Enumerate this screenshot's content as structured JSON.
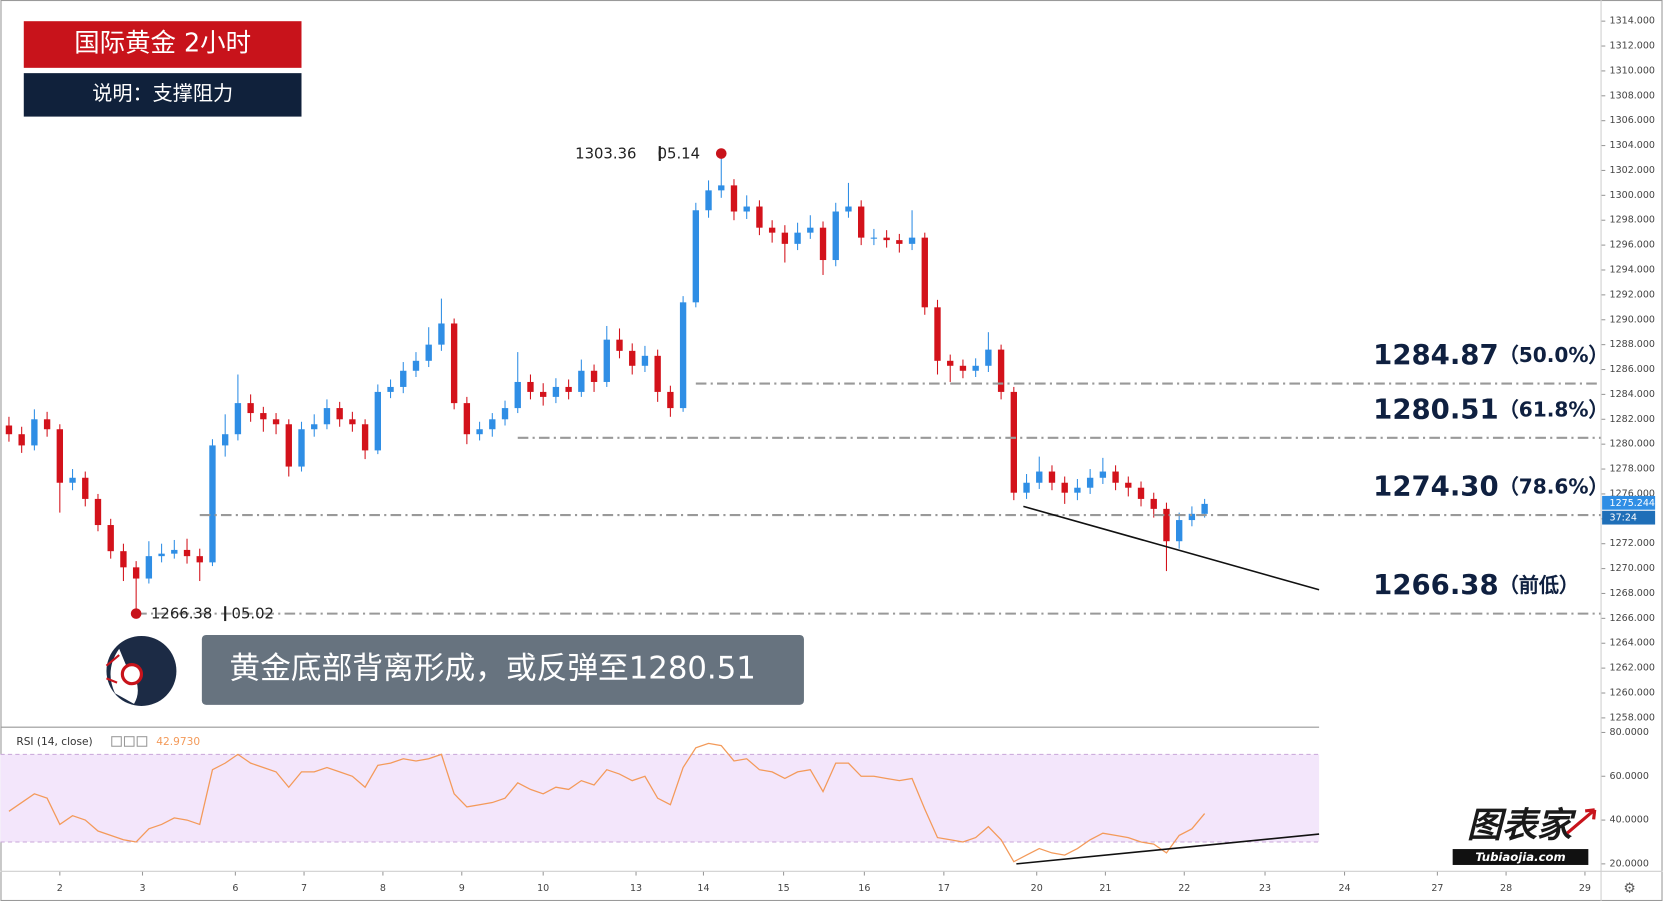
{
  "header": {
    "title": "国际黄金 2小时",
    "subtitle": "说明：支撑阻力",
    "callout": "黄金底部背离形成，或反弹至1280.51",
    "logo": "图表家",
    "logo_url": "Tubiaojia.com"
  },
  "chart_data": [
    {
      "type": "candlestick",
      "xlim": [
        -0.667,
        125.167
      ],
      "ylim": [
        1257.34,
        1315.7
      ],
      "yticks": [
        {
          "value": 1258,
          "label": "1258.000"
        },
        {
          "value": 1260,
          "label": "1260.000"
        },
        {
          "value": 1262,
          "label": "1262.000"
        },
        {
          "value": 1264,
          "label": "1264.000"
        },
        {
          "value": 1266,
          "label": "1266.000"
        },
        {
          "value": 1268,
          "label": "1268.000"
        },
        {
          "value": 1270,
          "label": "1270.000"
        },
        {
          "value": 1272,
          "label": "1272.000"
        },
        {
          "value": 1274,
          "label": "1274.000"
        },
        {
          "value": 1276,
          "label": "1276.000"
        },
        {
          "value": 1278,
          "label": "1278.000"
        },
        {
          "value": 1280,
          "label": "1280.000"
        },
        {
          "value": 1282,
          "label": "1282.000"
        },
        {
          "value": 1284,
          "label": "1284.000"
        },
        {
          "value": 1286,
          "label": "1286.000"
        },
        {
          "value": 1288,
          "label": "1288.000"
        },
        {
          "value": 1290,
          "label": "1290.000"
        },
        {
          "value": 1292,
          "label": "1292.000"
        },
        {
          "value": 1294,
          "label": "1294.000"
        },
        {
          "value": 1296,
          "label": "1296.000"
        },
        {
          "value": 1298,
          "label": "1298.000"
        },
        {
          "value": 1300,
          "label": "1300.000"
        },
        {
          "value": 1302,
          "label": "1302.000"
        },
        {
          "value": 1304,
          "label": "1304.000"
        },
        {
          "value": 1306,
          "label": "1306.000"
        },
        {
          "value": 1308,
          "label": "1308.000"
        },
        {
          "value": 1310,
          "label": "1310.000"
        },
        {
          "value": 1312,
          "label": "1312.000"
        },
        {
          "value": 1314,
          "label": "1314.000"
        }
      ],
      "series": [
        {
          "up_color": "#2f8ee5",
          "down_color": "#d3121b",
          "open": [
            1281.5,
            1280.8,
            1279.9,
            1282,
            1281.2,
            1276.9,
            1277.3,
            1275.6,
            1273.5,
            1271.4,
            1270.1,
            1269.2,
            1271,
            1271.2,
            1271.5,
            1271,
            1270.5,
            1279.9,
            1280.8,
            1283.3,
            1282.5,
            1282,
            1281.6,
            1278.2,
            1281.2,
            1281.6,
            1282.9,
            1282,
            1281.6,
            1279.5,
            1284.2,
            1284.6,
            1285.9,
            1286.7,
            1288,
            1289.7,
            1283.3,
            1280.8,
            1281.2,
            1282,
            1282.9,
            1285,
            1284.2,
            1283.8,
            1284.6,
            1284.2,
            1285.9,
            1285,
            1288.4,
            1287.5,
            1286.3,
            1287.1,
            1284.2,
            1282.9,
            1291.4,
            1298.8,
            1300.4,
            1300.8,
            1298.7,
            1299.1,
            1297.4,
            1297,
            1296.1,
            1297,
            1297.4,
            1294.8,
            1298.7,
            1299.1,
            1296.6,
            1296.6,
            1296.4,
            1296.1,
            1296.6,
            1291,
            1286.7,
            1286.3,
            1285.9,
            1286.3,
            1287.6,
            1284.2,
            1276.1,
            1276.9,
            1277.8,
            1276.9,
            1276.1,
            1276.5,
            1277.3,
            1277.8,
            1276.9,
            1276.5,
            1275.6,
            1274.8,
            1272.2,
            1273.9,
            1274.4
          ],
          "high": [
            1282.2,
            1281.4,
            1282.8,
            1282.6,
            1281.6,
            1278,
            1277.8,
            1276,
            1274,
            1272,
            1270.6,
            1272.2,
            1272,
            1272.3,
            1272.4,
            1271.6,
            1280.4,
            1282.4,
            1285.6,
            1284,
            1283,
            1282.5,
            1282,
            1281.8,
            1282.4,
            1283.6,
            1283.4,
            1282.6,
            1282,
            1284.8,
            1285.2,
            1286.6,
            1287.4,
            1289.4,
            1291.7,
            1290.1,
            1283.8,
            1281.8,
            1282.5,
            1283.5,
            1287.4,
            1285.6,
            1284.9,
            1285.3,
            1285.2,
            1286.8,
            1286.4,
            1289.5,
            1289.3,
            1288.1,
            1287.9,
            1287.6,
            1284.7,
            1291.9,
            1299.4,
            1301.2,
            1303.36,
            1301.3,
            1300,
            1299.6,
            1298,
            1297.6,
            1297.8,
            1298.4,
            1297.9,
            1299.4,
            1301,
            1299.6,
            1297.3,
            1297.2,
            1296.9,
            1298.8,
            1297,
            1291.6,
            1287.2,
            1286.8,
            1286.9,
            1289,
            1288,
            1284.6,
            1277.6,
            1279,
            1278.3,
            1277.4,
            1277.2,
            1278,
            1278.9,
            1278.3,
            1277.4,
            1277,
            1276.1,
            1275.3,
            1274.5,
            1275,
            1275.6
          ],
          "low": [
            1280.2,
            1279.3,
            1279.5,
            1280.6,
            1274.5,
            1276.3,
            1275,
            1273,
            1270.8,
            1269,
            1266.38,
            1268.8,
            1270.5,
            1270.8,
            1270.4,
            1269,
            1270.2,
            1279,
            1280.3,
            1281.8,
            1281,
            1280.8,
            1277.4,
            1277.8,
            1280.6,
            1281.2,
            1281.4,
            1281,
            1278.8,
            1279.2,
            1283.7,
            1284.1,
            1285.4,
            1286.2,
            1287.5,
            1282.8,
            1280,
            1280.3,
            1280.6,
            1281.5,
            1282.5,
            1283.6,
            1283.1,
            1283.3,
            1283.6,
            1283.8,
            1284.2,
            1284.6,
            1286.9,
            1285.6,
            1285.8,
            1283.4,
            1282.2,
            1282.6,
            1291,
            1298.2,
            1299.8,
            1298,
            1298.1,
            1296.8,
            1296.2,
            1294.6,
            1295.6,
            1296.5,
            1293.6,
            1294.3,
            1298.2,
            1296,
            1296,
            1295.8,
            1295.4,
            1295.6,
            1290.4,
            1285.6,
            1285,
            1285.3,
            1285.4,
            1285.8,
            1283.6,
            1275.5,
            1275.6,
            1276.4,
            1276.3,
            1275.2,
            1275.5,
            1276,
            1276.8,
            1276.3,
            1275.8,
            1275,
            1274.1,
            1269.8,
            1271.6,
            1273.4,
            1274.1
          ],
          "close": [
            1280.8,
            1279.9,
            1282,
            1281.2,
            1276.9,
            1277.3,
            1275.6,
            1273.5,
            1271.4,
            1270.1,
            1269.2,
            1271,
            1271.2,
            1271.5,
            1271,
            1270.5,
            1279.9,
            1280.8,
            1283.3,
            1282.5,
            1282,
            1281.6,
            1278.2,
            1281.2,
            1281.6,
            1282.9,
            1282,
            1281.6,
            1279.5,
            1284.2,
            1284.6,
            1285.9,
            1286.7,
            1288,
            1289.7,
            1283.3,
            1280.8,
            1281.2,
            1282,
            1282.9,
            1285,
            1284.2,
            1283.8,
            1284.6,
            1284.2,
            1285.9,
            1285,
            1288.4,
            1287.5,
            1286.3,
            1287.1,
            1284.2,
            1282.9,
            1291.4,
            1298.8,
            1300.4,
            1300.8,
            1298.7,
            1299.1,
            1297.4,
            1297,
            1296.1,
            1297,
            1297.4,
            1294.8,
            1298.7,
            1299.1,
            1296.6,
            1296.6,
            1296.4,
            1296.1,
            1296.6,
            1291,
            1286.7,
            1286.3,
            1285.9,
            1286.3,
            1287.6,
            1284.2,
            1276.1,
            1276.9,
            1277.8,
            1276.9,
            1276.1,
            1276.5,
            1277.3,
            1277.8,
            1276.9,
            1276.5,
            1275.6,
            1274.8,
            1272.2,
            1273.9,
            1274.4,
            1275.2
          ]
        }
      ],
      "last_price": {
        "value": 1275.244,
        "label": "1275.244"
      },
      "countdown": "37:24",
      "levels": [
        {
          "value": 1284.87,
          "label": "1284.87",
          "ratio": "（50.0%）",
          "from": 54
        },
        {
          "value": 1280.51,
          "label": "1280.51",
          "ratio": "（61.8%）",
          "from": 40
        },
        {
          "value": 1274.3,
          "label": "1274.30",
          "ratio": "（78.6%）",
          "from": 15
        },
        {
          "value": 1266.38,
          "label": "1266.38",
          "ratio": "（前低）",
          "from": 10
        }
      ],
      "trendline": {
        "x": [
          79.75,
          103
        ],
        "y": [
          1275,
          1268.3
        ]
      },
      "annotations": [
        {
          "x": 56,
          "y": 1303.36,
          "date": "05.14"
        },
        {
          "x": 10,
          "y": 1266.38,
          "date": "05.02"
        }
      ]
    },
    {
      "type": "line",
      "title": "RSI (14, close)",
      "xlim": [
        -0.667,
        125.167
      ],
      "ylim": [
        16.6,
        81.94
      ],
      "yticks": [
        {
          "value": 20,
          "label": "20.0000"
        },
        {
          "value": 40,
          "label": "40.0000"
        },
        {
          "value": 60,
          "label": "60.0000"
        },
        {
          "value": 80,
          "label": "80.0000"
        }
      ],
      "xticks": [
        {
          "value": 4,
          "label": "2"
        },
        {
          "value": 10.5,
          "label": "3"
        },
        {
          "value": 17.8,
          "label": "6"
        },
        {
          "value": 23.2,
          "label": "7"
        },
        {
          "value": 29.4,
          "label": "8"
        },
        {
          "value": 35.6,
          "label": "9"
        },
        {
          "value": 42,
          "label": "10"
        },
        {
          "value": 49.3,
          "label": "13"
        },
        {
          "value": 54.6,
          "label": "14"
        },
        {
          "value": 60.9,
          "label": "15"
        },
        {
          "value": 67.25,
          "label": "16"
        },
        {
          "value": 73.5,
          "label": "17"
        },
        {
          "value": 80.8,
          "label": "20"
        },
        {
          "value": 86.2,
          "label": "21"
        },
        {
          "value": 92.4,
          "label": "22"
        },
        {
          "value": 98.75,
          "label": "23"
        },
        {
          "value": 105,
          "label": "24"
        },
        {
          "value": 112.3,
          "label": "27"
        },
        {
          "value": 117.7,
          "label": "28"
        },
        {
          "value": 123.9,
          "label": "29"
        }
      ],
      "band": [
        30,
        70
      ],
      "series": [
        {
          "color": "#f39a5a",
          "values": [
            44,
            48,
            52,
            50,
            38,
            42,
            40,
            35,
            33,
            31,
            30,
            36,
            38,
            41,
            40,
            38,
            63,
            66,
            70,
            66,
            64,
            62,
            55,
            62,
            62,
            64,
            62,
            60,
            55,
            65,
            66,
            68,
            67,
            68,
            70,
            52,
            46,
            47,
            48,
            50,
            57,
            54,
            52,
            55,
            54,
            58,
            56,
            63,
            61,
            58,
            60,
            50,
            47,
            64,
            73,
            75,
            74,
            67,
            68,
            63,
            62,
            59,
            62,
            63,
            53,
            66,
            66,
            60,
            60,
            59,
            58,
            59,
            45,
            32,
            31,
            30,
            32,
            37,
            31,
            21,
            24,
            27,
            25,
            24,
            27,
            31,
            34,
            33,
            32,
            30,
            29,
            25,
            33,
            36,
            42.973
          ]
        }
      ],
      "current": {
        "value": 42.973,
        "label": "42.9730"
      },
      "trendline": {
        "x": [
          79.2,
          103
        ],
        "y": [
          20,
          33.6
        ]
      }
    }
  ]
}
